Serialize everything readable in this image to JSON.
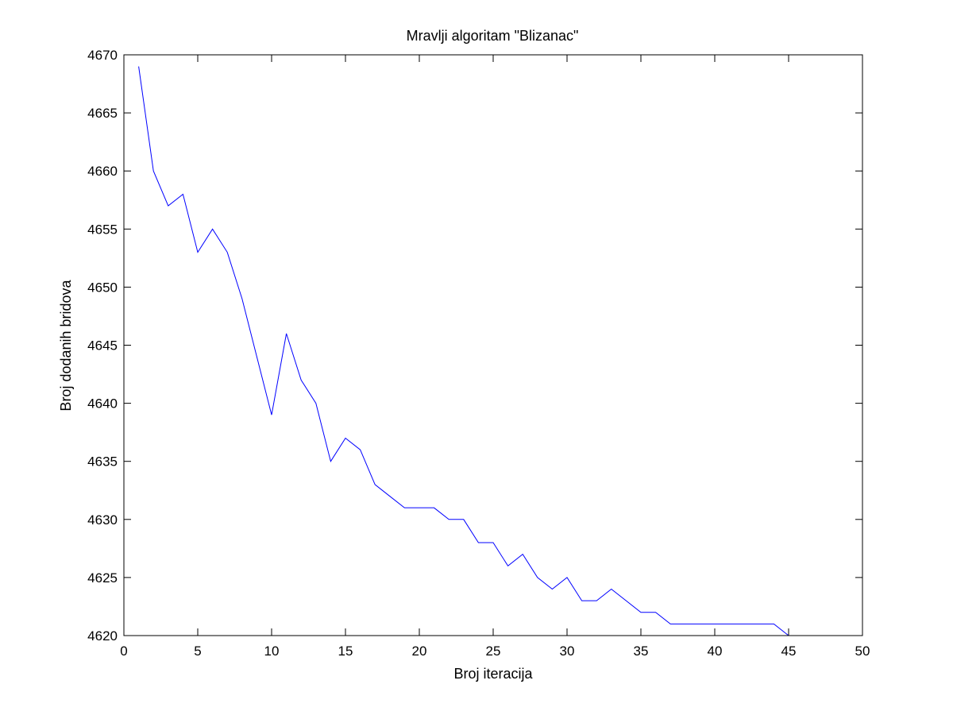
{
  "chart_data": {
    "type": "line",
    "title": "Mravlji algoritam \"Blizanac\"",
    "xlabel": "Broj iteracija",
    "ylabel": "Broj dodanih bridova",
    "xlim": [
      0,
      50
    ],
    "ylim": [
      4620,
      4670
    ],
    "xticks": [
      0,
      5,
      10,
      15,
      20,
      25,
      30,
      35,
      40,
      45,
      50
    ],
    "yticks": [
      4620,
      4625,
      4630,
      4635,
      4640,
      4645,
      4650,
      4655,
      4660,
      4665,
      4670
    ],
    "grid": false,
    "legend": "none",
    "series": [
      {
        "color": "#0000ff",
        "x": [
          1,
          2,
          3,
          4,
          5,
          6,
          7,
          8,
          9,
          10,
          11,
          12,
          13,
          14,
          15,
          16,
          17,
          18,
          19,
          20,
          21,
          22,
          23,
          24,
          25,
          26,
          27,
          28,
          29,
          30,
          31,
          32,
          33,
          34,
          35,
          36,
          37,
          38,
          39,
          40,
          41,
          42,
          43,
          44,
          45
        ],
        "y": [
          4669,
          4660,
          4657,
          4658,
          4653,
          4655,
          4653,
          4649,
          4644,
          4639,
          4646,
          4642,
          4640,
          4635,
          4637,
          4636,
          4633,
          4632,
          4631,
          4631,
          4631,
          4630,
          4630,
          4628,
          4628,
          4626,
          4627,
          4625,
          4624,
          4625,
          4623,
          4623,
          4624,
          4623,
          4622,
          4622,
          4621,
          4621,
          4621,
          4621,
          4621,
          4621,
          4621,
          4621,
          4620
        ]
      }
    ]
  }
}
